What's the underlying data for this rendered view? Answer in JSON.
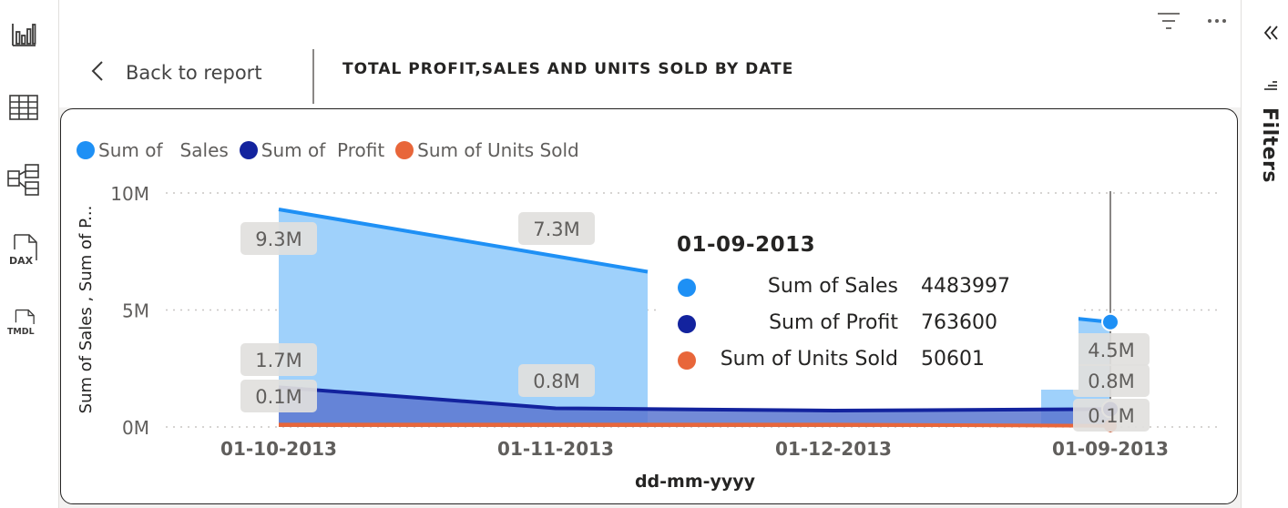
{
  "nav": {
    "items": [
      {
        "name": "report-view-icon"
      },
      {
        "name": "table-view-icon"
      },
      {
        "name": "model-view-icon"
      },
      {
        "name": "dax-query-view-icon",
        "label": "DAX"
      },
      {
        "name": "tmdl-view-icon",
        "label": "TMDL"
      }
    ]
  },
  "header": {
    "back_label": "Back to report",
    "title": "TOTAL PROFIT,SALES AND UNITS SOLD BY DATE"
  },
  "filters_pane": {
    "label": "Filters"
  },
  "colors": {
    "sales": "#1e90f5",
    "sales_fill": "#9fd1fb",
    "profit": "#13239e",
    "units": "#e8663a",
    "profit_fill": "#5a77d0"
  },
  "chart_data": {
    "type": "area",
    "xlabel": "dd-mm-yyyy",
    "ylabel": "Sum of Sales , Sum of P...",
    "categories": [
      "01-10-2013",
      "01-11-2013",
      "01-12-2013",
      "01-09-2013"
    ],
    "ylim": [
      0,
      10000000
    ],
    "yticks": [
      {
        "value": 0,
        "label": "0M"
      },
      {
        "value": 5000000,
        "label": "5M"
      },
      {
        "value": 10000000,
        "label": "10M"
      }
    ],
    "grid": true,
    "legend_position": "top-left",
    "series": [
      {
        "name": "Sum of   Sales",
        "color": "#1e90f5",
        "values": [
          9300000,
          7300000,
          null,
          4483997
        ],
        "labels": [
          "9.3M",
          "7.3M",
          "",
          "4.5M"
        ]
      },
      {
        "name": "Sum of  Profit",
        "color": "#13239e",
        "values": [
          1700000,
          800000,
          700000,
          763600
        ],
        "labels": [
          "1.7M",
          "0.8M",
          "",
          "0.8M"
        ]
      },
      {
        "name": "Sum of Units Sold",
        "color": "#e8663a",
        "values": [
          100000,
          100000,
          100000,
          50601
        ],
        "labels": [
          "0.1M",
          "",
          "",
          "0.1M"
        ]
      }
    ],
    "hover_category_index": 3
  },
  "tooltip": {
    "title": "01-09-2013",
    "rows": [
      {
        "label": "Sum of Sales",
        "value": "4483997",
        "color": "#1e90f5"
      },
      {
        "label": "Sum of Profit",
        "value": "763600",
        "color": "#13239e"
      },
      {
        "label": "Sum of Units Sold",
        "value": "50601",
        "color": "#e8663a"
      }
    ]
  }
}
